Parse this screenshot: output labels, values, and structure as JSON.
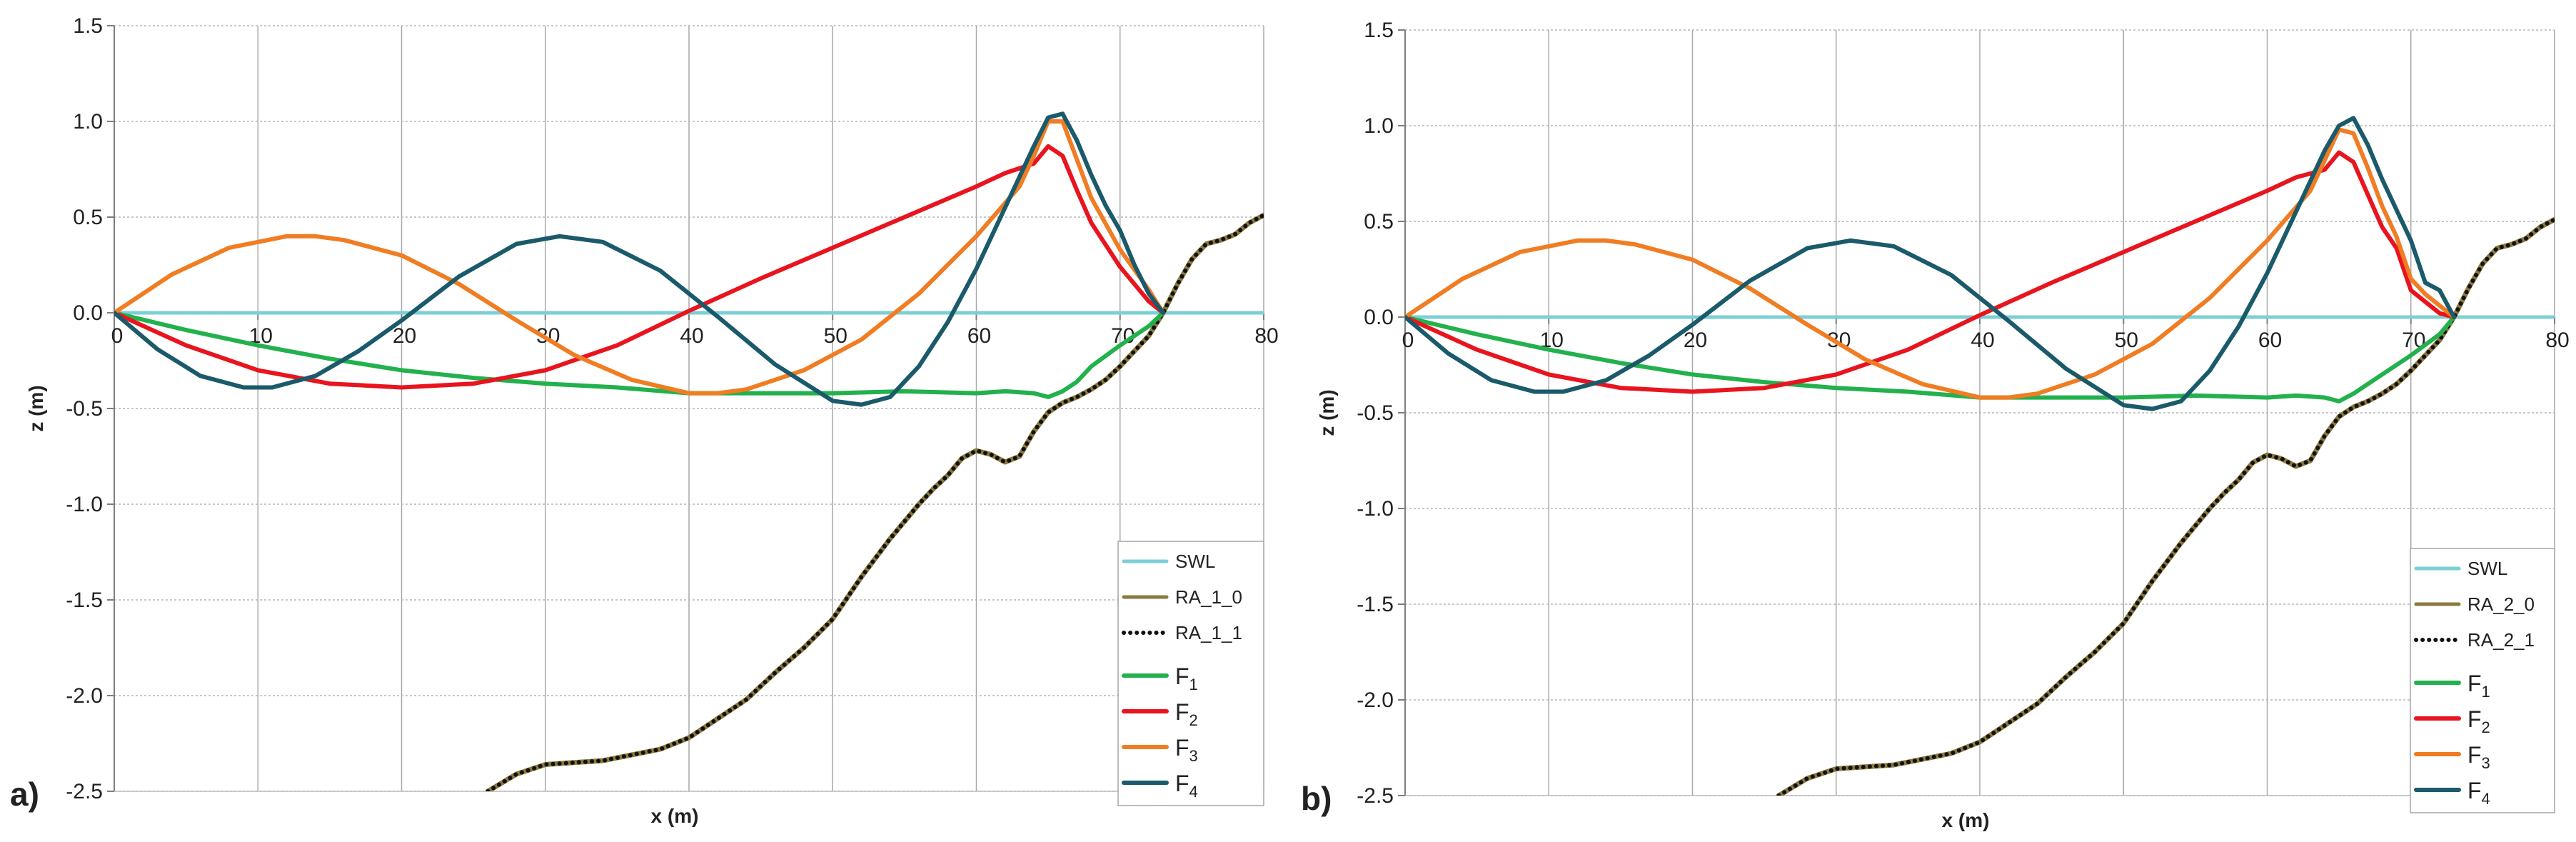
{
  "chart_data": [
    {
      "type": "line",
      "panel_label": "a)",
      "xlabel": "x (m)",
      "ylabel": "z (m)",
      "xlim": [
        0,
        80
      ],
      "ylim": [
        -2.5,
        1.5
      ],
      "xticks": [
        0,
        10,
        20,
        30,
        40,
        50,
        60,
        70,
        80
      ],
      "yticks": [
        -2.5,
        -2.0,
        -1.5,
        -1.0,
        -0.5,
        0.0,
        0.5,
        1.0,
        1.5
      ],
      "grid": true,
      "legend_position": "bottom-right",
      "legend": [
        {
          "label": "SWL",
          "sub": "",
          "color": "#7ccfd6",
          "style": "solid"
        },
        {
          "label": "RA_1_0",
          "sub": "",
          "color": "#8b7a3e",
          "style": "solid"
        },
        {
          "label": "RA_1_1",
          "sub": "",
          "color": "#111111",
          "style": "dotted"
        },
        {
          "label": "F",
          "sub": "1",
          "color": "#22b14c",
          "style": "solid"
        },
        {
          "label": "F",
          "sub": "2",
          "color": "#e8141e",
          "style": "solid"
        },
        {
          "label": "F",
          "sub": "3",
          "color": "#f07d23",
          "style": "solid"
        },
        {
          "label": "F",
          "sub": "4",
          "color": "#1a5a6a",
          "style": "solid"
        }
      ],
      "series": [
        {
          "name": "SWL",
          "color": "#7ccfd6",
          "x": [
            0,
            80
          ],
          "y": [
            0,
            0
          ]
        },
        {
          "name": "RA_1_0",
          "color": "#8b7a3e",
          "x": [
            26,
            28,
            30,
            32,
            34,
            36,
            38,
            40,
            42,
            44,
            46,
            48,
            50,
            52,
            54,
            56,
            57,
            58,
            59,
            60,
            61,
            62,
            63,
            64,
            65,
            66,
            67,
            68,
            69,
            70,
            71,
            72,
            73,
            74,
            75,
            76,
            77,
            78,
            79,
            80
          ],
          "y": [
            -2.5,
            -2.41,
            -2.36,
            -2.35,
            -2.34,
            -2.31,
            -2.28,
            -2.22,
            -2.12,
            -2.02,
            -1.88,
            -1.75,
            -1.6,
            -1.38,
            -1.18,
            -1.0,
            -0.92,
            -0.85,
            -0.76,
            -0.72,
            -0.74,
            -0.78,
            -0.75,
            -0.62,
            -0.52,
            -0.47,
            -0.44,
            -0.4,
            -0.35,
            -0.28,
            -0.2,
            -0.12,
            0.0,
            0.15,
            0.28,
            0.36,
            0.38,
            0.41,
            0.47,
            0.51
          ]
        },
        {
          "name": "RA_1_1",
          "color": "#111111",
          "dotted": true,
          "x": [
            26,
            28,
            30,
            32,
            34,
            36,
            38,
            40,
            42,
            44,
            46,
            48,
            50,
            52,
            54,
            56,
            57,
            58,
            59,
            60,
            61,
            62,
            63,
            64,
            65,
            66,
            67,
            68,
            69,
            70,
            71,
            72,
            73,
            74,
            75,
            76,
            77,
            78,
            79,
            80
          ],
          "y": [
            -2.5,
            -2.41,
            -2.36,
            -2.35,
            -2.34,
            -2.31,
            -2.28,
            -2.22,
            -2.12,
            -2.02,
            -1.88,
            -1.75,
            -1.6,
            -1.38,
            -1.18,
            -1.0,
            -0.92,
            -0.85,
            -0.76,
            -0.72,
            -0.74,
            -0.78,
            -0.75,
            -0.62,
            -0.52,
            -0.47,
            -0.44,
            -0.4,
            -0.35,
            -0.28,
            -0.2,
            -0.12,
            0.0,
            0.15,
            0.28,
            0.36,
            0.38,
            0.41,
            0.47,
            0.51
          ]
        },
        {
          "name": "F1",
          "color": "#22b14c",
          "x": [
            0,
            5,
            10,
            15,
            20,
            25,
            30,
            35,
            40,
            45,
            50,
            55,
            60,
            62,
            64,
            65,
            66,
            67,
            68,
            70,
            72,
            73
          ],
          "y": [
            0,
            -0.09,
            -0.17,
            -0.24,
            -0.3,
            -0.34,
            -0.37,
            -0.39,
            -0.42,
            -0.42,
            -0.42,
            -0.41,
            -0.42,
            -0.41,
            -0.42,
            -0.44,
            -0.41,
            -0.36,
            -0.28,
            -0.17,
            -0.07,
            0
          ]
        },
        {
          "name": "F2",
          "color": "#e8141e",
          "x": [
            0,
            5,
            10,
            15,
            20,
            25,
            30,
            35,
            40,
            45,
            50,
            55,
            60,
            62,
            64,
            65,
            66,
            67,
            68,
            70,
            72,
            73
          ],
          "y": [
            0,
            -0.17,
            -0.3,
            -0.37,
            -0.39,
            -0.37,
            -0.3,
            -0.17,
            0.01,
            0.18,
            0.34,
            0.5,
            0.66,
            0.73,
            0.78,
            0.87,
            0.82,
            0.64,
            0.47,
            0.24,
            0.06,
            0
          ]
        },
        {
          "name": "F3",
          "color": "#f07d23",
          "x": [
            0,
            4,
            8,
            12,
            14,
            16,
            20,
            24,
            28,
            32,
            36,
            40,
            42,
            44,
            48,
            52,
            56,
            60,
            63,
            64,
            65,
            66,
            67,
            68,
            70,
            72,
            73
          ],
          "y": [
            0,
            0.2,
            0.34,
            0.4,
            0.4,
            0.38,
            0.3,
            0.15,
            -0.04,
            -0.22,
            -0.35,
            -0.42,
            -0.42,
            -0.4,
            -0.3,
            -0.14,
            0.1,
            0.4,
            0.66,
            0.82,
            1.0,
            1.0,
            0.8,
            0.6,
            0.33,
            0.12,
            0
          ]
        },
        {
          "name": "F4",
          "color": "#1a5a6a",
          "x": [
            0,
            3,
            6,
            9,
            11,
            14,
            17,
            20,
            24,
            28,
            31,
            34,
            38,
            42,
            46,
            50,
            52,
            54,
            56,
            58,
            60,
            62,
            64,
            65,
            66,
            67,
            68,
            69,
            70,
            71,
            72,
            73
          ],
          "y": [
            0,
            -0.19,
            -0.33,
            -0.39,
            -0.39,
            -0.33,
            -0.2,
            -0.04,
            0.19,
            0.36,
            0.4,
            0.37,
            0.22,
            -0.02,
            -0.27,
            -0.46,
            -0.48,
            -0.44,
            -0.28,
            -0.05,
            0.23,
            0.55,
            0.87,
            1.02,
            1.04,
            0.9,
            0.72,
            0.56,
            0.43,
            0.25,
            0.1,
            0
          ]
        }
      ]
    },
    {
      "type": "line",
      "panel_label": "b)",
      "xlabel": "x (m)",
      "ylabel": "z (m)",
      "xlim": [
        0,
        80
      ],
      "ylim": [
        -2.5,
        1.5
      ],
      "xticks": [
        0,
        10,
        20,
        30,
        40,
        50,
        60,
        70,
        80
      ],
      "yticks": [
        -2.5,
        -2.0,
        -1.5,
        -1.0,
        -0.5,
        0.0,
        0.5,
        1.0,
        1.5
      ],
      "grid": true,
      "legend_position": "bottom-right",
      "legend": [
        {
          "label": "SWL",
          "sub": "",
          "color": "#7ccfd6",
          "style": "solid"
        },
        {
          "label": "RA_2_0",
          "sub": "",
          "color": "#8b7a3e",
          "style": "solid"
        },
        {
          "label": "RA_2_1",
          "sub": "",
          "color": "#111111",
          "style": "dotted"
        },
        {
          "label": "F",
          "sub": "1",
          "color": "#22b14c",
          "style": "solid"
        },
        {
          "label": "F",
          "sub": "2",
          "color": "#e8141e",
          "style": "solid"
        },
        {
          "label": "F",
          "sub": "3",
          "color": "#f07d23",
          "style": "solid"
        },
        {
          "label": "F",
          "sub": "4",
          "color": "#1a5a6a",
          "style": "solid"
        }
      ],
      "series": [
        {
          "name": "SWL",
          "color": "#7ccfd6",
          "x": [
            0,
            80
          ],
          "y": [
            0,
            0
          ]
        },
        {
          "name": "RA_2_0",
          "color": "#8b7a3e",
          "x": [
            26,
            28,
            30,
            32,
            34,
            36,
            38,
            40,
            42,
            44,
            46,
            48,
            50,
            52,
            54,
            56,
            57,
            58,
            59,
            60,
            61,
            62,
            63,
            64,
            65,
            66,
            67,
            68,
            69,
            70,
            71,
            72,
            73,
            74,
            75,
            76,
            77,
            78,
            79,
            80
          ],
          "y": [
            -2.5,
            -2.41,
            -2.36,
            -2.35,
            -2.34,
            -2.31,
            -2.28,
            -2.22,
            -2.12,
            -2.02,
            -1.88,
            -1.75,
            -1.6,
            -1.38,
            -1.18,
            -1.0,
            -0.92,
            -0.85,
            -0.76,
            -0.72,
            -0.74,
            -0.78,
            -0.75,
            -0.62,
            -0.52,
            -0.47,
            -0.44,
            -0.4,
            -0.35,
            -0.28,
            -0.2,
            -0.12,
            0.0,
            0.15,
            0.28,
            0.36,
            0.38,
            0.41,
            0.47,
            0.51
          ]
        },
        {
          "name": "RA_2_1",
          "color": "#111111",
          "dotted": true,
          "x": [
            26,
            28,
            30,
            32,
            34,
            36,
            38,
            40,
            42,
            44,
            46,
            48,
            50,
            52,
            54,
            56,
            57,
            58,
            59,
            60,
            61,
            62,
            63,
            64,
            65,
            66,
            67,
            68,
            69,
            70,
            71,
            72,
            73,
            74,
            75,
            76,
            77,
            78,
            79,
            80
          ],
          "y": [
            -2.5,
            -2.41,
            -2.36,
            -2.35,
            -2.34,
            -2.31,
            -2.28,
            -2.22,
            -2.12,
            -2.02,
            -1.88,
            -1.75,
            -1.6,
            -1.38,
            -1.18,
            -1.0,
            -0.92,
            -0.85,
            -0.76,
            -0.72,
            -0.74,
            -0.78,
            -0.75,
            -0.62,
            -0.52,
            -0.47,
            -0.44,
            -0.4,
            -0.35,
            -0.28,
            -0.2,
            -0.12,
            0.0,
            0.15,
            0.28,
            0.36,
            0.38,
            0.41,
            0.47,
            0.51
          ]
        },
        {
          "name": "F1",
          "color": "#22b14c",
          "x": [
            0,
            5,
            10,
            15,
            20,
            25,
            30,
            35,
            40,
            45,
            50,
            55,
            60,
            62,
            64,
            65,
            66,
            67,
            68,
            70,
            72,
            73
          ],
          "y": [
            0,
            -0.09,
            -0.17,
            -0.24,
            -0.3,
            -0.34,
            -0.37,
            -0.39,
            -0.42,
            -0.42,
            -0.42,
            -0.41,
            -0.42,
            -0.41,
            -0.42,
            -0.44,
            -0.4,
            -0.35,
            -0.3,
            -0.2,
            -0.09,
            0
          ]
        },
        {
          "name": "F2",
          "color": "#e8141e",
          "x": [
            0,
            5,
            10,
            15,
            20,
            25,
            30,
            35,
            40,
            45,
            50,
            55,
            60,
            62,
            64,
            65,
            66,
            67,
            68,
            69,
            70,
            71,
            72,
            73
          ],
          "y": [
            0,
            -0.17,
            -0.3,
            -0.37,
            -0.39,
            -0.37,
            -0.3,
            -0.17,
            0.01,
            0.18,
            0.34,
            0.5,
            0.66,
            0.73,
            0.77,
            0.86,
            0.81,
            0.64,
            0.47,
            0.36,
            0.14,
            0.08,
            0.02,
            0
          ]
        },
        {
          "name": "F3",
          "color": "#f07d23",
          "x": [
            0,
            4,
            8,
            12,
            14,
            16,
            20,
            24,
            28,
            32,
            36,
            40,
            42,
            44,
            48,
            52,
            56,
            60,
            63,
            64,
            65,
            66,
            67,
            68,
            69,
            70,
            71,
            72,
            73
          ],
          "y": [
            0,
            0.2,
            0.34,
            0.4,
            0.4,
            0.38,
            0.3,
            0.15,
            -0.04,
            -0.22,
            -0.35,
            -0.42,
            -0.42,
            -0.4,
            -0.3,
            -0.14,
            0.1,
            0.4,
            0.66,
            0.82,
            0.98,
            0.96,
            0.78,
            0.58,
            0.42,
            0.2,
            0.12,
            0.06,
            0
          ]
        },
        {
          "name": "F4",
          "color": "#1a5a6a",
          "x": [
            0,
            3,
            6,
            9,
            11,
            14,
            17,
            20,
            24,
            28,
            31,
            34,
            38,
            42,
            46,
            50,
            52,
            54,
            56,
            58,
            60,
            62,
            64,
            65,
            66,
            67,
            68,
            69,
            70,
            71,
            72,
            73
          ],
          "y": [
            0,
            -0.19,
            -0.33,
            -0.39,
            -0.39,
            -0.33,
            -0.2,
            -0.04,
            0.19,
            0.36,
            0.4,
            0.37,
            0.22,
            -0.02,
            -0.27,
            -0.46,
            -0.48,
            -0.44,
            -0.28,
            -0.05,
            0.23,
            0.55,
            0.87,
            1.0,
            1.04,
            0.9,
            0.72,
            0.56,
            0.4,
            0.18,
            0.14,
            0
          ]
        }
      ]
    }
  ]
}
